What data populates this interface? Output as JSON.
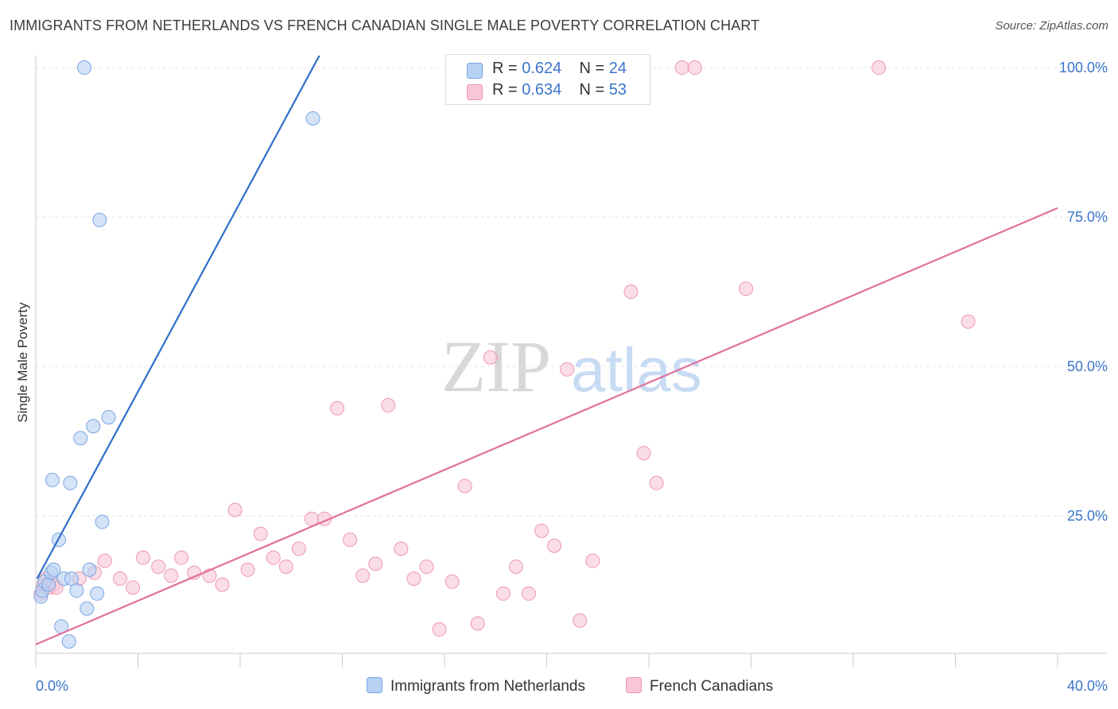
{
  "title": "IMMIGRANTS FROM NETHERLANDS VS FRENCH CANADIAN SINGLE MALE POVERTY CORRELATION CHART",
  "source": "Source: ZipAtlas.com",
  "watermark": {
    "zip": "ZIP",
    "atlas": "atlas"
  },
  "legend_top": [
    {
      "r_label": "R = ",
      "r_value": "0.624",
      "n_label": "N = ",
      "n_value": "24"
    },
    {
      "r_label": "R = ",
      "r_value": "0.634",
      "n_label": "N = ",
      "n_value": "53"
    }
  ],
  "legend_bottom": [
    "Immigrants from Netherlands",
    "French Canadians"
  ],
  "colors": {
    "blue_fill": "#b7d1f4",
    "blue_stroke": "#7aa6e0",
    "blue_line": "#2f6fcb",
    "pink_fill": "#f9c6d6",
    "pink_stroke": "#ec98b4",
    "pink_line": "#e0709a",
    "axis_text": "#3b74c9",
    "grid": "#e3e3e3"
  },
  "chart_data": {
    "type": "scatter",
    "title": "IMMIGRANTS FROM NETHERLANDS VS FRENCH CANADIAN SINGLE MALE POVERTY CORRELATION CHART",
    "xlabel": "",
    "ylabel": "Single Male Poverty",
    "xlim": [
      0,
      40
    ],
    "ylim": [
      2,
      102
    ],
    "x_tick_labels": [
      "0.0%",
      "40.0%"
    ],
    "y_ticks": [
      25,
      50,
      75,
      100
    ],
    "y_tick_labels": [
      "25.0%",
      "50.0%",
      "75.0%",
      "100.0%"
    ],
    "grid": true,
    "series": [
      {
        "name": "Immigrants from Netherlands",
        "R": 0.624,
        "N": 24,
        "points": [
          [
            0.2,
            11.5
          ],
          [
            0.25,
            12.5
          ],
          [
            0.35,
            14
          ],
          [
            0.5,
            13.5
          ],
          [
            0.6,
            15.5
          ],
          [
            0.65,
            31
          ],
          [
            0.7,
            16
          ],
          [
            0.9,
            21
          ],
          [
            1.1,
            14.5
          ],
          [
            1.0,
            6.5
          ],
          [
            1.3,
            4
          ],
          [
            1.4,
            14.5
          ],
          [
            1.6,
            12.5
          ],
          [
            1.75,
            38
          ],
          [
            1.9,
            100
          ],
          [
            2.0,
            9.5
          ],
          [
            2.1,
            16
          ],
          [
            2.25,
            40
          ],
          [
            2.4,
            12
          ],
          [
            2.5,
            74.5
          ],
          [
            2.6,
            24
          ],
          [
            2.85,
            41.5
          ],
          [
            1.35,
            30.5
          ],
          [
            10.85,
            91.5
          ]
        ],
        "trend": [
          [
            0.05,
            14.5
          ],
          [
            11.1,
            102
          ]
        ]
      },
      {
        "name": "French Canadians",
        "R": 0.634,
        "N": 53,
        "points": [
          [
            0.2,
            12
          ],
          [
            0.3,
            13.5
          ],
          [
            0.4,
            14.5
          ],
          [
            0.5,
            13
          ],
          [
            0.7,
            13.5
          ],
          [
            0.8,
            13
          ],
          [
            1.7,
            14.5
          ],
          [
            2.3,
            15.5
          ],
          [
            2.7,
            17.5
          ],
          [
            3.3,
            14.5
          ],
          [
            3.8,
            13
          ],
          [
            4.2,
            18
          ],
          [
            4.8,
            16.5
          ],
          [
            5.3,
            15
          ],
          [
            5.7,
            18
          ],
          [
            6.2,
            15.5
          ],
          [
            6.8,
            15
          ],
          [
            7.3,
            13.5
          ],
          [
            7.8,
            26
          ],
          [
            8.3,
            16
          ],
          [
            8.8,
            22
          ],
          [
            9.3,
            18
          ],
          [
            9.8,
            16.5
          ],
          [
            10.3,
            19.5
          ],
          [
            10.8,
            24.5
          ],
          [
            11.3,
            24.5
          ],
          [
            11.8,
            43
          ],
          [
            12.3,
            21
          ],
          [
            12.8,
            15
          ],
          [
            13.3,
            17
          ],
          [
            13.8,
            43.5
          ],
          [
            14.3,
            19.5
          ],
          [
            14.8,
            14.5
          ],
          [
            15.3,
            16.5
          ],
          [
            15.8,
            6
          ],
          [
            16.3,
            14
          ],
          [
            16.8,
            30
          ],
          [
            17.3,
            7
          ],
          [
            17.8,
            51.5
          ],
          [
            18.3,
            12
          ],
          [
            18.8,
            16.5
          ],
          [
            19.3,
            12
          ],
          [
            19.8,
            22.5
          ],
          [
            20.3,
            20
          ],
          [
            20.8,
            49.5
          ],
          [
            21.3,
            7.5
          ],
          [
            21.8,
            17.5
          ],
          [
            23.3,
            62.5
          ],
          [
            23.8,
            35.5
          ],
          [
            24.3,
            30.5
          ],
          [
            25.3,
            100
          ],
          [
            25.8,
            100
          ],
          [
            27.8,
            63
          ]
        ],
        "extra_points": [
          [
            33,
            100
          ],
          [
            36.5,
            57.5
          ]
        ],
        "trend": [
          [
            0,
            3.5
          ],
          [
            40,
            76.5
          ]
        ]
      }
    ]
  }
}
